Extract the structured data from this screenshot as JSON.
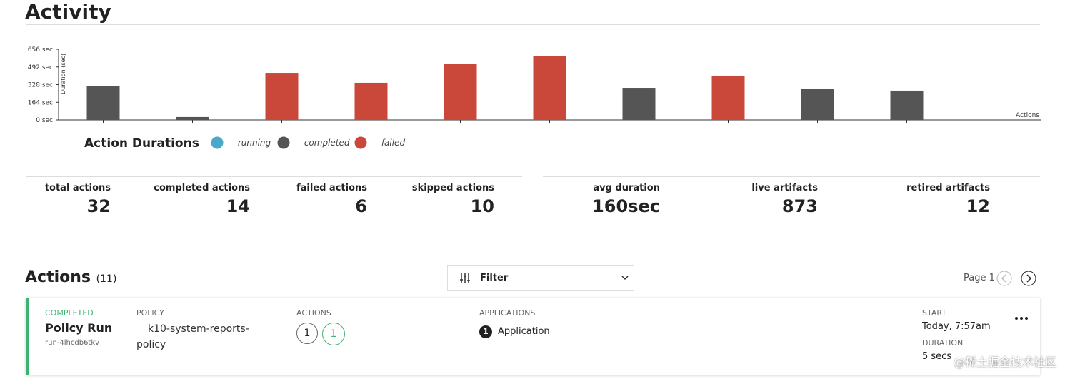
{
  "header": {
    "title": "Activity"
  },
  "chart_data": {
    "type": "bar",
    "y_label": "Duration (sec)",
    "x_label": "Actions",
    "legend_title": "Action Durations",
    "categories": [
      null,
      null,
      null,
      null,
      null,
      null,
      null,
      null,
      null,
      null,
      null
    ],
    "series": [
      {
        "name": "— running",
        "color": "#4aa8c9",
        "values": [
          null,
          null,
          null,
          null,
          null,
          null,
          null,
          null,
          null,
          null,
          null
        ]
      },
      {
        "name": "— completed",
        "color": "#555555",
        "values": [
          318,
          27,
          null,
          null,
          null,
          null,
          298,
          null,
          285,
          272,
          null
        ]
      },
      {
        "name": "— failed",
        "color": "#c9483a",
        "values": [
          null,
          null,
          437,
          345,
          523,
          596,
          null,
          411,
          null,
          null,
          null
        ]
      }
    ],
    "ylim": [
      0,
      656
    ],
    "yticks": [
      {
        "value": 0,
        "label": "0 sec"
      },
      {
        "value": 164,
        "label": "164 sec"
      },
      {
        "value": 328,
        "label": "328 sec"
      },
      {
        "value": 492,
        "label": "492 sec"
      },
      {
        "value": 656,
        "label": "656 sec"
      }
    ],
    "grid": false
  },
  "stats": [
    {
      "label": "total actions",
      "value": 32
    },
    {
      "label": "completed actions",
      "value": 14
    },
    {
      "label": "failed actions",
      "value": 6
    },
    {
      "label": "skipped actions",
      "value": 10
    },
    {
      "label": "avg duration",
      "value": "160sec"
    },
    {
      "label": "live artifacts",
      "value": 873
    },
    {
      "label": "retired artifacts",
      "value": 12
    }
  ],
  "actions": {
    "title": "Actions",
    "count": "(11)",
    "filter": "Filter",
    "page": "Page 1",
    "card": {
      "status": "COMPLETED",
      "name": "Policy Run",
      "id": "run-4lhcdb6tkv",
      "policy_label": "POLICY",
      "policy": "k10-system-reports-policy",
      "actions_label": "ACTIONS",
      "actions": [
        "1",
        "1"
      ],
      "applications_label": "APPLICATIONS",
      "applications_count": "1",
      "applications": "Application",
      "start_label": "START",
      "start": "Today, 7:57am",
      "duration_label": "DURATION",
      "duration": "5 secs"
    }
  },
  "watermark": "@稀土掘金技术社区"
}
